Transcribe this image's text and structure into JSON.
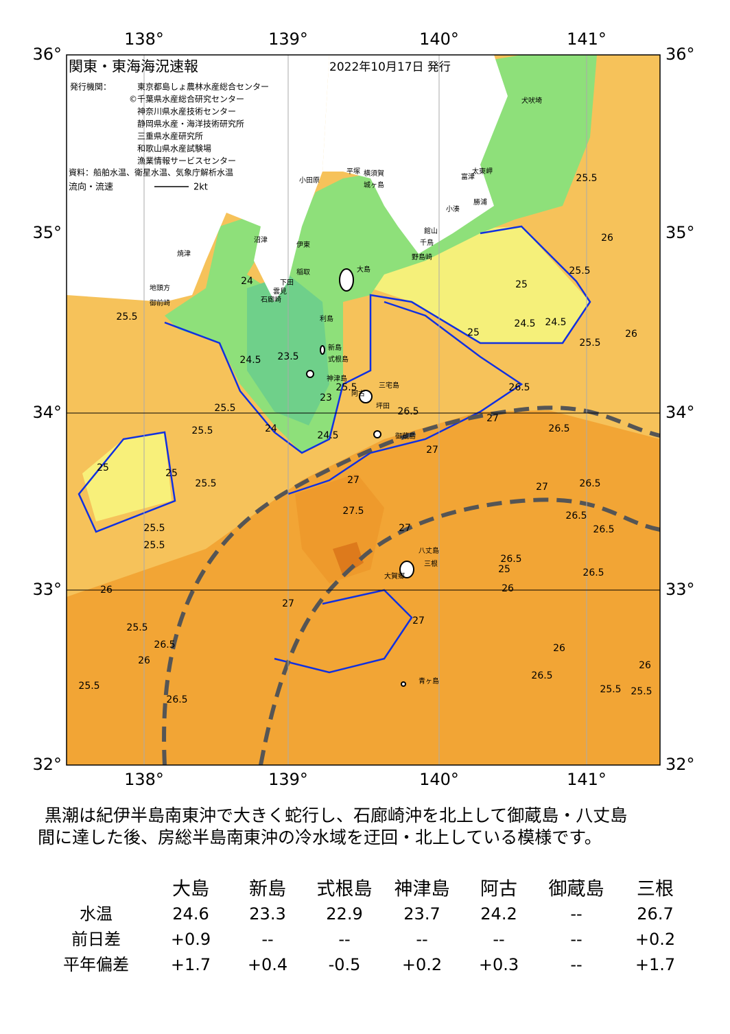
{
  "map": {
    "title": "関東・東海海況速報",
    "date": "2022年10月17日 発行",
    "issuer_label": "発行機関：",
    "issuers": [
      "東京都島しょ農林水産総合センター",
      "©千葉県水産総合研究センター",
      "神奈川県水産技術センター",
      "静岡県水産・海洋技術研究所",
      "三重県水産研究所",
      "和歌山県水産試験場",
      "漁業情報サービスセンター"
    ],
    "source": "資料：船舶水温、衛星水温、気象庁解析水温",
    "flow_label": "流向・流速",
    "flow_scale": "2kt",
    "lon_labels": [
      "138°",
      "139°",
      "140°",
      "141°"
    ],
    "lat_labels": [
      "36°",
      "35°",
      "34°",
      "33°",
      "32°"
    ],
    "places": [
      "犬吠埼",
      "太東岬",
      "勝浦",
      "小湊",
      "富津",
      "館山",
      "千鳥",
      "野島崎",
      "横須賀",
      "城ヶ島",
      "平塚",
      "小田原",
      "沼津",
      "伊東",
      "稲取",
      "下田",
      "石廊崎",
      "雲見",
      "焼津",
      "御前崎",
      "地頭方",
      "大島",
      "利島",
      "新島",
      "式根島",
      "神津島",
      "三宅島",
      "阿古",
      "坪田",
      "御蔵島",
      "八丈島",
      "三根",
      "大賀郷",
      "青ヶ島"
    ],
    "contours": [
      25.5,
      25,
      25.5,
      24,
      24.5,
      23.5,
      24,
      23,
      24.5,
      25.5,
      25.5,
      25.5,
      25,
      25,
      25.5,
      25.5,
      26,
      25.5,
      26,
      26.5,
      26.5,
      27,
      27.5,
      27,
      27,
      27,
      27,
      26.5,
      26.5,
      27,
      26.5,
      26.5,
      26,
      25.5,
      25.5,
      26,
      26.5,
      25.5,
      26,
      26.5,
      25,
      24.5,
      24.5,
      25.5,
      26,
      25.5,
      25,
      26.5,
      26.5,
      27,
      26.5,
      26,
      25.5
    ]
  },
  "text": {
    "lines": [
      "黒潮は紀伊半島南東沖で大きく蛇行し、石廊崎沖を北上して御蔵島・八丈島",
      "間に達した後、房総半島南東沖の冷水域を迂回・北上している模様です。"
    ]
  },
  "table": {
    "header": [
      "大島",
      "新島",
      "式根島",
      "神津島",
      "阿古",
      "御蔵島",
      "三根"
    ],
    "rows": [
      [
        "水温",
        "24.6",
        "23.3",
        "22.9",
        "23.7",
        "24.2",
        "--",
        "26.7"
      ],
      [
        "前日差",
        "+0.9",
        "--",
        "--",
        "--",
        "--",
        "--",
        "+0.2"
      ],
      [
        "平年偏差",
        "+1.7",
        "+0.4",
        "-0.5",
        "+0.2",
        "+0.3",
        "--",
        "+1.7"
      ]
    ]
  }
}
